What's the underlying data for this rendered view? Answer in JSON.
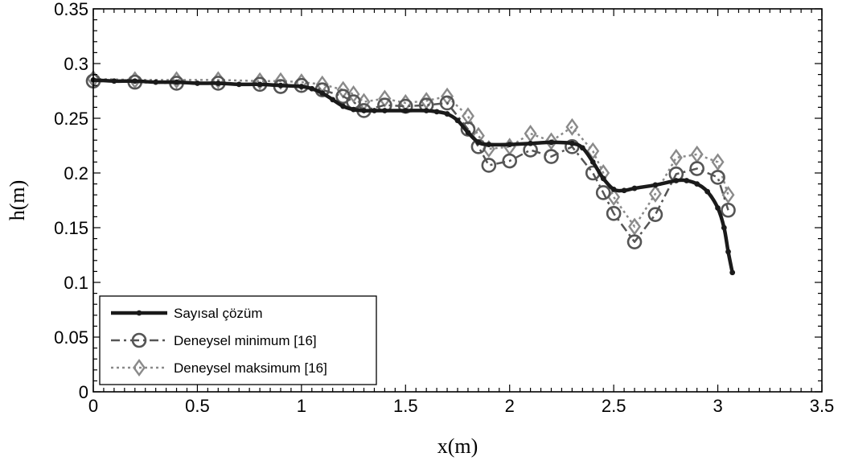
{
  "chart_data": {
    "type": "line",
    "xlabel": "x(m)",
    "ylabel": "h(m)",
    "xlim": [
      0,
      3.5
    ],
    "ylim": [
      0,
      0.35
    ],
    "xticks": [
      "0",
      "0.5",
      "1",
      "1.5",
      "2",
      "2.5",
      "3",
      "3.5"
    ],
    "xtick_values": [
      0,
      0.5,
      1,
      1.5,
      2,
      2.5,
      3,
      3.5
    ],
    "yticks": [
      "0",
      "0.05",
      "0.1",
      "0.15",
      "0.2",
      "0.25",
      "0.3",
      "0.35"
    ],
    "ytick_values": [
      0,
      0.05,
      0.1,
      0.15,
      0.2,
      0.25,
      0.3,
      0.35
    ],
    "grid": false,
    "legend_position": "bottom-left",
    "series": [
      {
        "name": "Sayısal çözüm",
        "style": "solid-dot",
        "color": "#1a1a1a",
        "x": [
          0,
          0.1,
          0.2,
          0.3,
          0.4,
          0.5,
          0.6,
          0.7,
          0.8,
          0.9,
          1.0,
          1.05,
          1.1,
          1.15,
          1.2,
          1.25,
          1.3,
          1.35,
          1.4,
          1.5,
          1.6,
          1.65,
          1.7,
          1.75,
          1.8,
          1.85,
          1.9,
          2.0,
          2.1,
          2.2,
          2.3,
          2.35,
          2.4,
          2.45,
          2.5,
          2.55,
          2.6,
          2.7,
          2.8,
          2.85,
          2.9,
          2.95,
          3.0,
          3.03,
          3.05,
          3.07
        ],
        "y": [
          0.285,
          0.284,
          0.284,
          0.283,
          0.283,
          0.282,
          0.282,
          0.281,
          0.281,
          0.28,
          0.279,
          0.277,
          0.273,
          0.267,
          0.261,
          0.258,
          0.257,
          0.257,
          0.257,
          0.257,
          0.257,
          0.256,
          0.254,
          0.248,
          0.237,
          0.228,
          0.226,
          0.226,
          0.227,
          0.228,
          0.227,
          0.223,
          0.21,
          0.195,
          0.185,
          0.184,
          0.186,
          0.189,
          0.193,
          0.193,
          0.19,
          0.183,
          0.168,
          0.15,
          0.128,
          0.109
        ]
      },
      {
        "name": "Deneysel minimum [16]",
        "style": "dashdot-circle",
        "color": "#555555",
        "x": [
          0,
          0.2,
          0.4,
          0.6,
          0.8,
          0.9,
          1.0,
          1.1,
          1.2,
          1.25,
          1.3,
          1.4,
          1.5,
          1.6,
          1.7,
          1.8,
          1.85,
          1.9,
          2.0,
          2.1,
          2.2,
          2.3,
          2.4,
          2.45,
          2.5,
          2.6,
          2.7,
          2.8,
          2.9,
          3.0,
          3.05
        ],
        "y": [
          0.284,
          0.283,
          0.282,
          0.282,
          0.281,
          0.279,
          0.28,
          0.276,
          0.27,
          0.265,
          0.257,
          0.262,
          0.261,
          0.262,
          0.264,
          0.24,
          0.224,
          0.207,
          0.211,
          0.221,
          0.215,
          0.224,
          0.2,
          0.182,
          0.163,
          0.137,
          0.162,
          0.199,
          0.204,
          0.196,
          0.166
        ]
      },
      {
        "name": "Deneysel maksimum [16]",
        "style": "dotted-diamond",
        "color": "#8a8a8a",
        "x": [
          0,
          0.2,
          0.4,
          0.6,
          0.8,
          0.9,
          1.0,
          1.1,
          1.2,
          1.25,
          1.3,
          1.4,
          1.5,
          1.6,
          1.7,
          1.8,
          1.85,
          1.9,
          2.0,
          2.1,
          2.2,
          2.3,
          2.4,
          2.45,
          2.5,
          2.6,
          2.7,
          2.8,
          2.9,
          3.0,
          3.05
        ],
        "y": [
          0.286,
          0.285,
          0.285,
          0.285,
          0.284,
          0.284,
          0.283,
          0.281,
          0.276,
          0.272,
          0.265,
          0.268,
          0.264,
          0.266,
          0.27,
          0.252,
          0.234,
          0.222,
          0.224,
          0.236,
          0.229,
          0.242,
          0.22,
          0.2,
          0.178,
          0.151,
          0.181,
          0.214,
          0.217,
          0.21,
          0.18
        ]
      }
    ]
  }
}
